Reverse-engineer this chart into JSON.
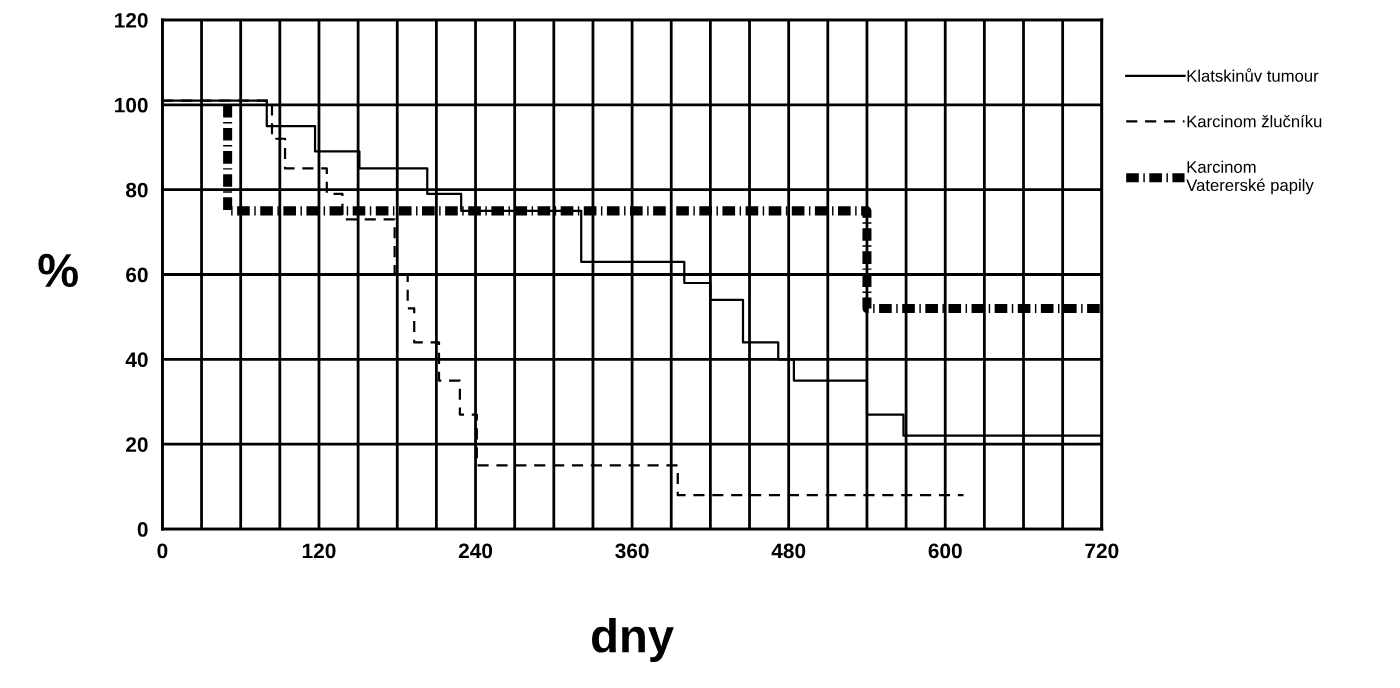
{
  "chart_data": {
    "type": "step",
    "xlabel": "dny",
    "ylabel": "%",
    "xlim": [
      0,
      720
    ],
    "ylim": [
      0,
      120
    ],
    "xticks": [
      0,
      {
        "value": 30,
        "label": null
      },
      {
        "value": 60,
        "label": null
      },
      {
        "value": 90,
        "label": null
      },
      120,
      {
        "value": 150,
        "label": null
      },
      {
        "value": 180,
        "label": null
      },
      {
        "value": 210,
        "label": null
      },
      240,
      {
        "value": 270,
        "label": null
      },
      {
        "value": 300,
        "label": null
      },
      {
        "value": 330,
        "label": null
      },
      360,
      {
        "value": 390,
        "label": null
      },
      {
        "value": 420,
        "label": null
      },
      {
        "value": 450,
        "label": null
      },
      480,
      {
        "value": 510,
        "label": null
      },
      {
        "value": 540,
        "label": null
      },
      {
        "value": 570,
        "label": null
      },
      600,
      {
        "value": 630,
        "label": null
      },
      {
        "value": 660,
        "label": null
      },
      {
        "value": 690,
        "label": null
      },
      720
    ],
    "yticks": [
      0,
      20,
      40,
      60,
      80,
      100,
      120
    ],
    "grid": true,
    "legend": "right",
    "series": [
      {
        "name": "Klatskinův tumour",
        "color": "#000000",
        "line_style": "solid",
        "x": [
          0,
          80,
          117,
          151,
          203,
          229,
          321,
          400,
          420,
          445,
          472,
          484,
          540,
          568,
          720
        ],
        "values": [
          101,
          95,
          89,
          85,
          79,
          75,
          63,
          58,
          54,
          44,
          40,
          35,
          27,
          22,
          22
        ]
      },
      {
        "name": "Karcinom žlučníku",
        "color": "#000000",
        "line_style": "dashed",
        "x": [
          0,
          84,
          94,
          126,
          138,
          178,
          188,
          193,
          212,
          228,
          241,
          395,
          614
        ],
        "values": [
          101,
          92,
          85,
          79,
          73,
          60,
          52,
          44,
          35,
          27,
          15,
          8,
          8
        ]
      },
      {
        "name": "Karcinom\nVatererské papily",
        "color": "#000000",
        "line_style": "dashed",
        "x": [
          50,
          50,
          540,
          720
        ],
        "values": [
          100,
          75,
          52,
          52
        ]
      }
    ]
  }
}
